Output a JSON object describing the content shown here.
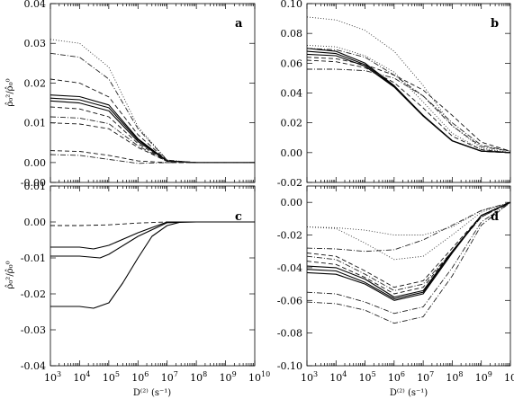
{
  "figure": {
    "ylabel": "ρ̂₀²/ρ̂₀⁰",
    "xlabel": "D⁽²⁾ (s⁻¹)"
  },
  "chart_data": [
    {
      "panel": "a",
      "type": "line",
      "xscale": "log",
      "xlim": [
        1000,
        10000000000
      ],
      "ylim": [
        -0.005,
        0.04
      ],
      "yticks": [
        "-0.00",
        "0.00",
        "0.01",
        "0.02",
        "0.03",
        "0.04"
      ],
      "ytick_values": [
        -0.005,
        0.0,
        0.01,
        0.02,
        0.03,
        0.04
      ],
      "show_x_ticklabels": false,
      "series": [
        {
          "style": "solid",
          "x": [
            1000,
            10000,
            100000,
            1000000,
            10000000,
            100000000,
            10000000000
          ],
          "y": [
            0.017,
            0.0166,
            0.0145,
            0.006,
            0.0004,
            0.0,
            0.0
          ]
        },
        {
          "style": "solid",
          "x": [
            1000,
            10000,
            100000,
            1000000,
            10000000,
            100000000,
            10000000000
          ],
          "y": [
            0.0162,
            0.0158,
            0.0138,
            0.0057,
            0.0004,
            0.0,
            0.0
          ]
        },
        {
          "style": "solid",
          "x": [
            1000,
            10000,
            100000,
            1000000,
            10000000,
            100000000,
            10000000000
          ],
          "y": [
            0.0155,
            0.015,
            0.013,
            0.0053,
            0.0004,
            0.0,
            0.0
          ]
        },
        {
          "style": "dotted",
          "x": [
            1000,
            10000,
            100000,
            1000000,
            10000000,
            100000000,
            10000000000
          ],
          "y": [
            0.031,
            0.03,
            0.024,
            0.009,
            0.0006,
            0.0,
            0.0
          ]
        },
        {
          "style": "dashdot",
          "x": [
            1000,
            10000,
            100000,
            1000000,
            10000000,
            100000000,
            10000000000
          ],
          "y": [
            0.0275,
            0.0265,
            0.021,
            0.0085,
            0.0006,
            0.0,
            0.0
          ]
        },
        {
          "style": "dashed",
          "x": [
            1000,
            10000,
            100000,
            1000000,
            10000000,
            100000000,
            10000000000
          ],
          "y": [
            0.021,
            0.02,
            0.0165,
            0.007,
            0.0005,
            0.0,
            0.0
          ]
        },
        {
          "style": "dashed",
          "x": [
            1000,
            10000,
            100000,
            1000000,
            10000000,
            100000000,
            10000000000
          ],
          "y": [
            0.014,
            0.0135,
            0.0115,
            0.0048,
            0.0003,
            0.0,
            0.0
          ]
        },
        {
          "style": "dashdot",
          "x": [
            1000,
            10000,
            100000,
            1000000,
            10000000,
            100000000,
            10000000000
          ],
          "y": [
            0.0115,
            0.0112,
            0.0098,
            0.0042,
            0.0003,
            0.0,
            0.0
          ]
        },
        {
          "style": "dashed",
          "x": [
            1000,
            10000,
            100000,
            1000000,
            10000000,
            100000000,
            10000000000
          ],
          "y": [
            0.01,
            0.0097,
            0.0085,
            0.0038,
            0.0003,
            0.0,
            0.0
          ]
        },
        {
          "style": "dashed",
          "x": [
            1000,
            10000,
            100000,
            1000000,
            10000000,
            100000000,
            10000000000
          ],
          "y": [
            0.003,
            0.0028,
            0.0018,
            0.0004,
            0.0,
            0.0,
            0.0
          ]
        },
        {
          "style": "dashdot",
          "x": [
            1000,
            10000,
            100000,
            1000000,
            10000000,
            100000000,
            10000000000
          ],
          "y": [
            0.002,
            0.0018,
            0.0008,
            -0.0002,
            0.0,
            0.0,
            0.0
          ]
        }
      ]
    },
    {
      "panel": "b",
      "type": "line",
      "xscale": "log",
      "xlim": [
        1000,
        10000000000
      ],
      "ylim": [
        -0.02,
        0.1
      ],
      "yticks": [
        "-0.02",
        "0.00",
        "0.02",
        "0.04",
        "0.06",
        "0.08",
        "0.10"
      ],
      "ytick_values": [
        -0.02,
        0.0,
        0.02,
        0.04,
        0.06,
        0.08,
        0.1
      ],
      "show_x_ticklabels": false,
      "series": [
        {
          "style": "solid",
          "x": [
            1000,
            10000,
            100000,
            1000000,
            10000000,
            100000000,
            1000000000,
            10000000000
          ],
          "y": [
            0.07,
            0.068,
            0.06,
            0.045,
            0.025,
            0.008,
            0.001,
            0.0
          ]
        },
        {
          "style": "solid",
          "x": [
            1000,
            10000,
            100000,
            1000000,
            10000000,
            100000000,
            1000000000,
            10000000000
          ],
          "y": [
            0.068,
            0.0665,
            0.059,
            0.0445,
            0.025,
            0.008,
            0.001,
            0.0
          ]
        },
        {
          "style": "solid",
          "x": [
            1000,
            10000,
            100000,
            1000000,
            10000000,
            100000000,
            1000000000,
            10000000000
          ],
          "y": [
            0.066,
            0.065,
            0.058,
            0.044,
            0.0245,
            0.0078,
            0.001,
            0.0
          ]
        },
        {
          "style": "dotted",
          "x": [
            1000,
            10000,
            100000,
            1000000,
            10000000,
            100000000,
            1000000000,
            10000000000
          ],
          "y": [
            0.091,
            0.089,
            0.082,
            0.068,
            0.045,
            0.018,
            0.003,
            0.0
          ]
        },
        {
          "style": "dotted",
          "x": [
            1000,
            10000,
            100000,
            1000000,
            10000000,
            100000000,
            1000000000,
            10000000000
          ],
          "y": [
            0.072,
            0.071,
            0.065,
            0.054,
            0.034,
            0.013,
            0.002,
            0.0
          ]
        },
        {
          "style": "dashdot",
          "x": [
            1000,
            10000,
            100000,
            1000000,
            10000000,
            100000000,
            1000000000,
            10000000000
          ],
          "y": [
            0.07,
            0.069,
            0.064,
            0.052,
            0.038,
            0.02,
            0.005,
            0.001
          ]
        },
        {
          "style": "dashed",
          "x": [
            1000,
            10000,
            100000,
            1000000,
            10000000,
            100000000,
            1000000000,
            10000000000
          ],
          "y": [
            0.064,
            0.063,
            0.059,
            0.052,
            0.042,
            0.025,
            0.007,
            0.001
          ]
        },
        {
          "style": "dashed",
          "x": [
            1000,
            10000,
            100000,
            1000000,
            10000000,
            100000000,
            1000000000,
            10000000000
          ],
          "y": [
            0.062,
            0.061,
            0.057,
            0.047,
            0.03,
            0.011,
            0.002,
            0.0
          ]
        },
        {
          "style": "dashdot",
          "x": [
            1000,
            10000,
            100000,
            1000000,
            10000000,
            100000000,
            1000000000,
            10000000000
          ],
          "y": [
            0.056,
            0.056,
            0.055,
            0.05,
            0.038,
            0.018,
            0.004,
            0.001
          ]
        }
      ]
    },
    {
      "panel": "c",
      "type": "line",
      "xscale": "log",
      "xlim": [
        1000,
        10000000000
      ],
      "ylim": [
        -0.04,
        0.01
      ],
      "yticks": [
        "-0.04",
        "-0.03",
        "-0.02",
        "-0.01",
        "0.00",
        "0.01"
      ],
      "ytick_values": [
        -0.04,
        -0.03,
        -0.02,
        -0.01,
        0.0,
        0.01
      ],
      "show_x_ticklabels": true,
      "series": [
        {
          "style": "dashed",
          "x": [
            1000,
            10000,
            100000,
            1000000,
            10000000,
            100000000,
            10000000000
          ],
          "y": [
            -0.001,
            -0.001,
            -0.0008,
            -0.0003,
            0.0,
            0.0,
            0.0
          ]
        },
        {
          "style": "solid",
          "x": [
            1000,
            10000,
            30000,
            100000,
            1000000,
            10000000,
            100000000,
            10000000000
          ],
          "y": [
            -0.007,
            -0.007,
            -0.0075,
            -0.0065,
            -0.003,
            0.0,
            0.0,
            0.0
          ]
        },
        {
          "style": "solid",
          "x": [
            1000,
            10000,
            50000,
            100000,
            1000000,
            10000000,
            100000000,
            10000000000
          ],
          "y": [
            -0.0095,
            -0.0095,
            -0.01,
            -0.009,
            -0.004,
            -0.0002,
            0.0,
            0.0
          ]
        },
        {
          "style": "solid",
          "x": [
            1000,
            10000,
            30000,
            100000,
            300000,
            1000000,
            3000000,
            10000000,
            30000000,
            100000000,
            10000000000
          ],
          "y": [
            -0.0235,
            -0.0235,
            -0.024,
            -0.0225,
            -0.017,
            -0.01,
            -0.004,
            -0.001,
            0.0,
            0.0,
            0.0
          ]
        }
      ]
    },
    {
      "panel": "d",
      "type": "line",
      "xscale": "log",
      "xlim": [
        1000,
        10000000000
      ],
      "ylim": [
        -0.1,
        0.01
      ],
      "yticks": [
        "-0.10",
        "-0.08",
        "-0.06",
        "-0.04",
        "-0.02",
        "0.00"
      ],
      "ytick_values": [
        -0.1,
        -0.08,
        -0.06,
        -0.04,
        -0.02,
        0.0
      ],
      "show_x_ticklabels": true,
      "series": [
        {
          "style": "dotted",
          "x": [
            1000,
            10000,
            100000,
            1000000,
            10000000,
            100000000,
            1000000000,
            10000000000
          ],
          "y": [
            -0.015,
            -0.0155,
            -0.017,
            -0.02,
            -0.02,
            -0.015,
            -0.005,
            0.0
          ]
        },
        {
          "style": "dotted",
          "x": [
            1000,
            10000,
            100000,
            1000000,
            10000000,
            100000000,
            1000000000,
            10000000000
          ],
          "y": [
            -0.015,
            -0.016,
            -0.025,
            -0.035,
            -0.033,
            -0.02,
            -0.006,
            0.0
          ]
        },
        {
          "style": "dashdot",
          "x": [
            1000,
            10000,
            100000,
            1000000,
            10000000,
            100000000,
            1000000000,
            10000000000
          ],
          "y": [
            -0.028,
            -0.0285,
            -0.03,
            -0.029,
            -0.023,
            -0.014,
            -0.005,
            0.0
          ]
        },
        {
          "style": "dashed",
          "x": [
            1000,
            10000,
            100000,
            1000000,
            10000000,
            100000000,
            1000000000,
            10000000000
          ],
          "y": [
            -0.031,
            -0.033,
            -0.042,
            -0.052,
            -0.048,
            -0.028,
            -0.008,
            0.0
          ]
        },
        {
          "style": "dashdot",
          "x": [
            1000,
            10000,
            100000,
            1000000,
            10000000,
            100000000,
            1000000000,
            10000000000
          ],
          "y": [
            -0.033,
            -0.035,
            -0.044,
            -0.054,
            -0.05,
            -0.03,
            -0.009,
            0.0
          ]
        },
        {
          "style": "dashed",
          "x": [
            1000,
            10000,
            100000,
            1000000,
            10000000,
            100000000,
            1000000000,
            10000000000
          ],
          "y": [
            -0.036,
            -0.038,
            -0.046,
            -0.056,
            -0.052,
            -0.03,
            -0.009,
            0.0
          ]
        },
        {
          "style": "solid",
          "x": [
            1000,
            10000,
            100000,
            1000000,
            10000000,
            100000000,
            1000000000,
            10000000000
          ],
          "y": [
            -0.039,
            -0.04,
            -0.047,
            -0.058,
            -0.054,
            -0.03,
            -0.008,
            0.0
          ]
        },
        {
          "style": "solid",
          "x": [
            1000,
            10000,
            100000,
            1000000,
            10000000,
            100000000,
            1000000000,
            10000000000
          ],
          "y": [
            -0.041,
            -0.042,
            -0.049,
            -0.059,
            -0.055,
            -0.03,
            -0.008,
            0.0
          ]
        },
        {
          "style": "solid",
          "x": [
            1000,
            10000,
            100000,
            1000000,
            10000000,
            100000000,
            1000000000,
            10000000000
          ],
          "y": [
            -0.043,
            -0.044,
            -0.05,
            -0.06,
            -0.056,
            -0.031,
            -0.008,
            0.0
          ]
        },
        {
          "style": "dashdot",
          "x": [
            1000,
            10000,
            100000,
            1000000,
            10000000,
            100000000,
            1000000000,
            10000000000
          ],
          "y": [
            -0.055,
            -0.056,
            -0.061,
            -0.068,
            -0.064,
            -0.04,
            -0.012,
            0.0
          ]
        },
        {
          "style": "dashdot",
          "x": [
            1000,
            10000,
            100000,
            1000000,
            10000000,
            100000000,
            1000000000,
            10000000000
          ],
          "y": [
            -0.061,
            -0.062,
            -0.066,
            -0.074,
            -0.07,
            -0.045,
            -0.014,
            0.0
          ]
        }
      ]
    }
  ]
}
